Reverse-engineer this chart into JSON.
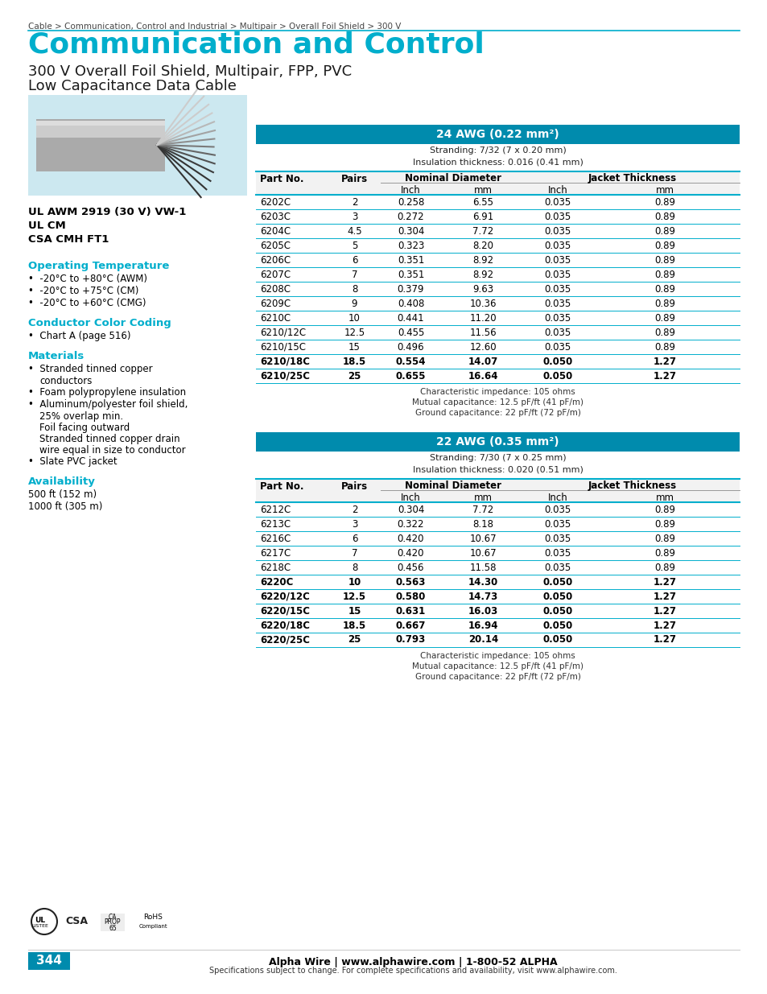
{
  "breadcrumb": "Cable > Communication, Control and Industrial > Multipair > Overall Foil Shield > 300 V",
  "title": "Communication and Control",
  "subtitle1": "300 V Overall Foil Shield, Multipair, FPP, PVC",
  "subtitle2": "Low Capacitance Data Cable",
  "title_color": "#00AECC",
  "header_bg_color": "#008BAD",
  "cyan_color": "#00AECC",
  "page_bg": "#ffffff",
  "certifications": [
    "UL AWM 2919 (30 V) VW-1",
    "UL CM",
    "CSA CMH FT1"
  ],
  "op_temp_title": "Operating Temperature",
  "op_temp_bullets": [
    "-20°C to +80°C (AWM)",
    "-20°C to +75°C (CM)",
    "-20°C to +60°C (CMG)"
  ],
  "color_coding_title": "Conductor Color Coding",
  "color_coding_bullets": [
    "Chart A (page 516)"
  ],
  "materials_title": "Materials",
  "materials_bullets": [
    "Stranded tinned copper\nconductors",
    "Foam polypropylene insulation",
    "Aluminum/polyester foil shield,\n25% overlap min.\nFoil facing outward\nStranded tinned copper drain\nwire equal in size to conductor",
    "Slate PVC jacket"
  ],
  "availability_title": "Availability",
  "availability_lines": [
    "500 ft (152 m)",
    "1000 ft (305 m)"
  ],
  "table1_header": "24 AWG (0.22 mm²)",
  "table1_stranding": [
    "Stranding: 7/32 (7 x 0.20 mm)",
    "Insulation thickness: 0.016 (0.41 mm)"
  ],
  "table1_rows": [
    [
      "6202C",
      "2",
      "0.258",
      "6.55",
      "0.035",
      "0.89"
    ],
    [
      "6203C",
      "3",
      "0.272",
      "6.91",
      "0.035",
      "0.89"
    ],
    [
      "6204C",
      "4.5",
      "0.304",
      "7.72",
      "0.035",
      "0.89"
    ],
    [
      "6205C",
      "5",
      "0.323",
      "8.20",
      "0.035",
      "0.89"
    ],
    [
      "6206C",
      "6",
      "0.351",
      "8.92",
      "0.035",
      "0.89"
    ],
    [
      "6207C",
      "7",
      "0.351",
      "8.92",
      "0.035",
      "0.89"
    ],
    [
      "6208C",
      "8",
      "0.379",
      "9.63",
      "0.035",
      "0.89"
    ],
    [
      "6209C",
      "9",
      "0.408",
      "10.36",
      "0.035",
      "0.89"
    ],
    [
      "6210C",
      "10",
      "0.441",
      "11.20",
      "0.035",
      "0.89"
    ],
    [
      "6210/12C",
      "12.5",
      "0.455",
      "11.56",
      "0.035",
      "0.89"
    ],
    [
      "6210/15C",
      "15",
      "0.496",
      "12.60",
      "0.035",
      "0.89"
    ],
    [
      "6210/18C",
      "18.5",
      "0.554",
      "14.07",
      "0.050",
      "1.27"
    ],
    [
      "6210/25C",
      "25",
      "0.655",
      "16.64",
      "0.050",
      "1.27"
    ]
  ],
  "table1_footer": [
    "Characteristic impedance: 105 ohms",
    "Mutual capacitance: 12.5 pF/ft (41 pF/m)",
    "Ground capacitance: 22 pF/ft (72 pF/m)"
  ],
  "table2_header": "22 AWG (0.35 mm²)",
  "table2_stranding": [
    "Stranding: 7/30 (7 x 0.25 mm)",
    "Insulation thickness: 0.020 (0.51 mm)"
  ],
  "table2_rows": [
    [
      "6212C",
      "2",
      "0.304",
      "7.72",
      "0.035",
      "0.89"
    ],
    [
      "6213C",
      "3",
      "0.322",
      "8.18",
      "0.035",
      "0.89"
    ],
    [
      "6216C",
      "6",
      "0.420",
      "10.67",
      "0.035",
      "0.89"
    ],
    [
      "6217C",
      "7",
      "0.420",
      "10.67",
      "0.035",
      "0.89"
    ],
    [
      "6218C",
      "8",
      "0.456",
      "11.58",
      "0.035",
      "0.89"
    ],
    [
      "6220C",
      "10",
      "0.563",
      "14.30",
      "0.050",
      "1.27"
    ],
    [
      "6220/12C",
      "12.5",
      "0.580",
      "14.73",
      "0.050",
      "1.27"
    ],
    [
      "6220/15C",
      "15",
      "0.631",
      "16.03",
      "0.050",
      "1.27"
    ],
    [
      "6220/18C",
      "18.5",
      "0.667",
      "16.94",
      "0.050",
      "1.27"
    ],
    [
      "6220/25C",
      "25",
      "0.793",
      "20.14",
      "0.050",
      "1.27"
    ]
  ],
  "table2_footer": [
    "Characteristic impedance: 105 ohms",
    "Mutual capacitance: 12.5 pF/ft (41 pF/m)",
    "Ground capacitance: 22 pF/ft (72 pF/m)"
  ],
  "footer_bold": "Alpha Wire | www.alphawire.com | 1-800-52 ALPHA",
  "footer_small": "Specifications subject to change. For complete specifications and availability, visit www.alphawire.com.",
  "page_number": "344",
  "page_num_bg": "#008BAD",
  "image_bg": "#cce8f0"
}
